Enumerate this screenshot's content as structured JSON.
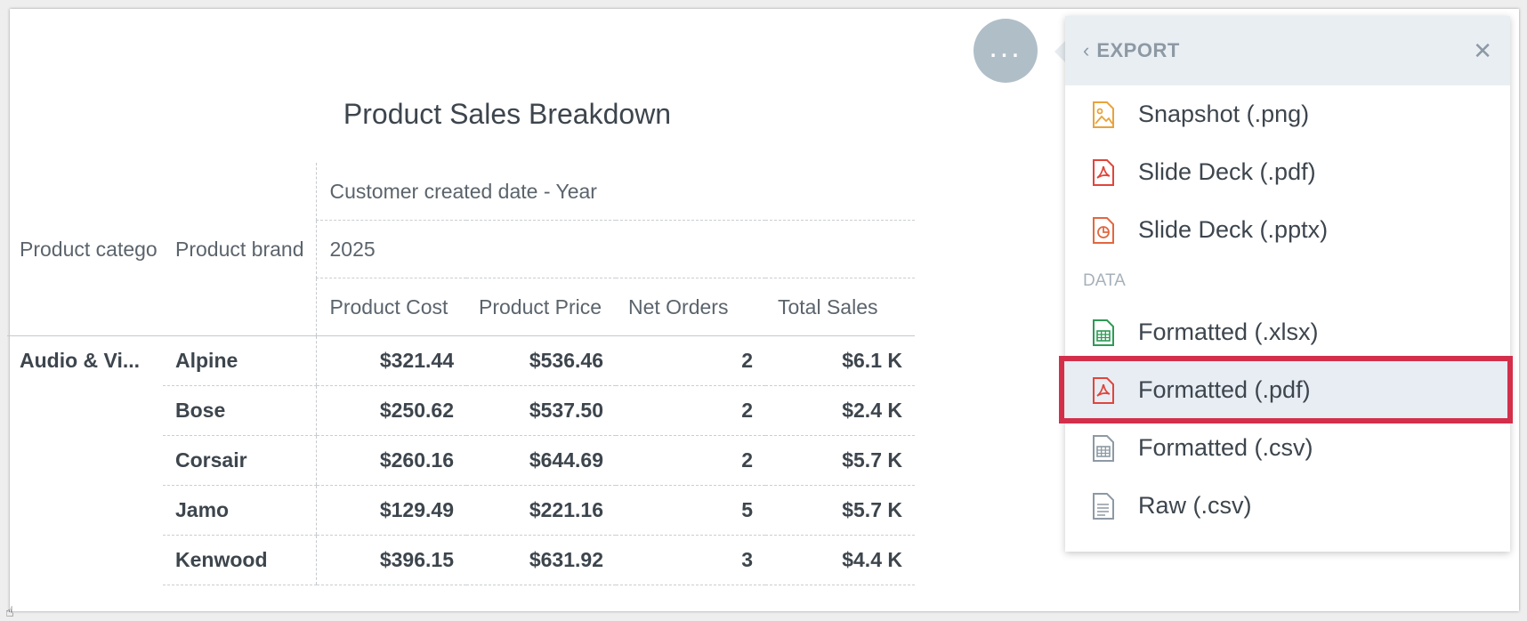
{
  "insight": {
    "title": "Product Sales Breakdown",
    "column_attribute_label": "Customer created date - Year",
    "column_attribute_value": "2025",
    "row_headers": [
      "Product catego",
      "Product brand"
    ],
    "metric_headers": [
      "Product Cost",
      "Product Price",
      "Net Orders",
      "Total Sales"
    ],
    "category": "Audio & Vi...",
    "rows": [
      {
        "brand": "Alpine",
        "cost": "$321.44",
        "price": "$536.46",
        "orders": "2",
        "sales": "$6.1 K"
      },
      {
        "brand": "Bose",
        "cost": "$250.62",
        "price": "$537.50",
        "orders": "2",
        "sales": "$2.4 K"
      },
      {
        "brand": "Corsair",
        "cost": "$260.16",
        "price": "$644.69",
        "orders": "2",
        "sales": "$5.7 K"
      },
      {
        "brand": "Jamo",
        "cost": "$129.49",
        "price": "$221.16",
        "orders": "5",
        "sales": "$5.7 K"
      },
      {
        "brand": "Kenwood",
        "cost": "$396.15",
        "price": "$631.92",
        "orders": "3",
        "sales": "$4.4 K"
      }
    ]
  },
  "options_button": {
    "label": "..."
  },
  "export_menu": {
    "back_icon": "‹",
    "title": "EXPORT",
    "close_icon": "✕",
    "items": [
      {
        "label": "Snapshot (.png)",
        "icon": "image-file-icon",
        "color": "#e8a33b"
      },
      {
        "label": "Slide Deck (.pdf)",
        "icon": "pdf-file-icon",
        "color": "#e0453b"
      },
      {
        "label": "Slide Deck (.pptx)",
        "icon": "pptx-file-icon",
        "color": "#e2673f"
      }
    ],
    "data_section_label": "DATA",
    "data_items": [
      {
        "label": "Formatted (.xlsx)",
        "icon": "xlsx-file-icon",
        "color": "#2e9a55"
      },
      {
        "label": "Formatted (.pdf)",
        "icon": "pdf-file-icon",
        "color": "#e0453b",
        "highlighted": true
      },
      {
        "label": "Formatted (.csv)",
        "icon": "csv-file-icon",
        "color": "#8d99a4"
      },
      {
        "label": "Raw (.csv)",
        "icon": "text-file-icon",
        "color": "#8d99a4"
      }
    ],
    "highlight_color": "#d32f4b"
  }
}
